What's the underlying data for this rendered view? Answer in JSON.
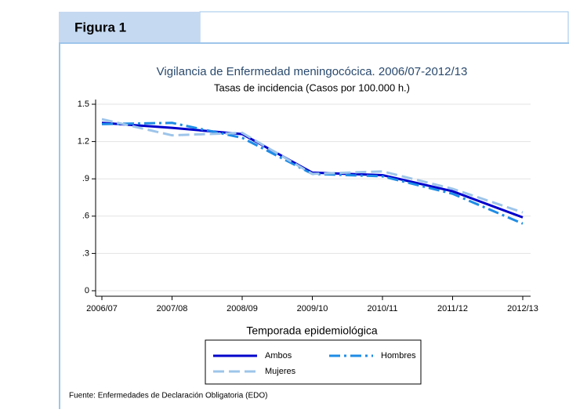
{
  "header": "Figura 1",
  "chart_data": {
    "type": "line",
    "title": "Vigilancia de Enfermedad meningocócica. 2006/07-2012/13",
    "subtitle": "Tasas de incidencia (Casos por 100.000 h.)",
    "x_label": "Temporada epidemiológica",
    "categories": [
      "2006/07",
      "2007/08",
      "2008/09",
      "2009/10",
      "2010/11",
      "2011/12",
      "2012/13"
    ],
    "series": [
      {
        "name": "Ambos",
        "color": "#0000cc",
        "dash": "",
        "values": [
          1.35,
          1.31,
          1.26,
          0.95,
          0.93,
          0.8,
          0.59
        ]
      },
      {
        "name": "Hombres",
        "color": "#1e8ce6",
        "dash": "14 5 3 5",
        "values": [
          1.34,
          1.35,
          1.23,
          0.94,
          0.92,
          0.78,
          0.54
        ]
      },
      {
        "name": "Mujeres",
        "color": "#9ec5ea",
        "dash": "14 6",
        "values": [
          1.38,
          1.25,
          1.27,
          0.94,
          0.96,
          0.82,
          0.63
        ]
      }
    ],
    "ylim": [
      0,
      1.5
    ],
    "yticks": [
      0,
      {
        "value": 0.3,
        "label": ".3"
      },
      {
        "value": 0.6,
        "label": ".6"
      },
      {
        "value": 0.9,
        "label": ".9"
      },
      1.2,
      1.5
    ],
    "grid": true,
    "source": "Fuente: Enfermedades de Declaración Obligatoria (EDO)"
  }
}
